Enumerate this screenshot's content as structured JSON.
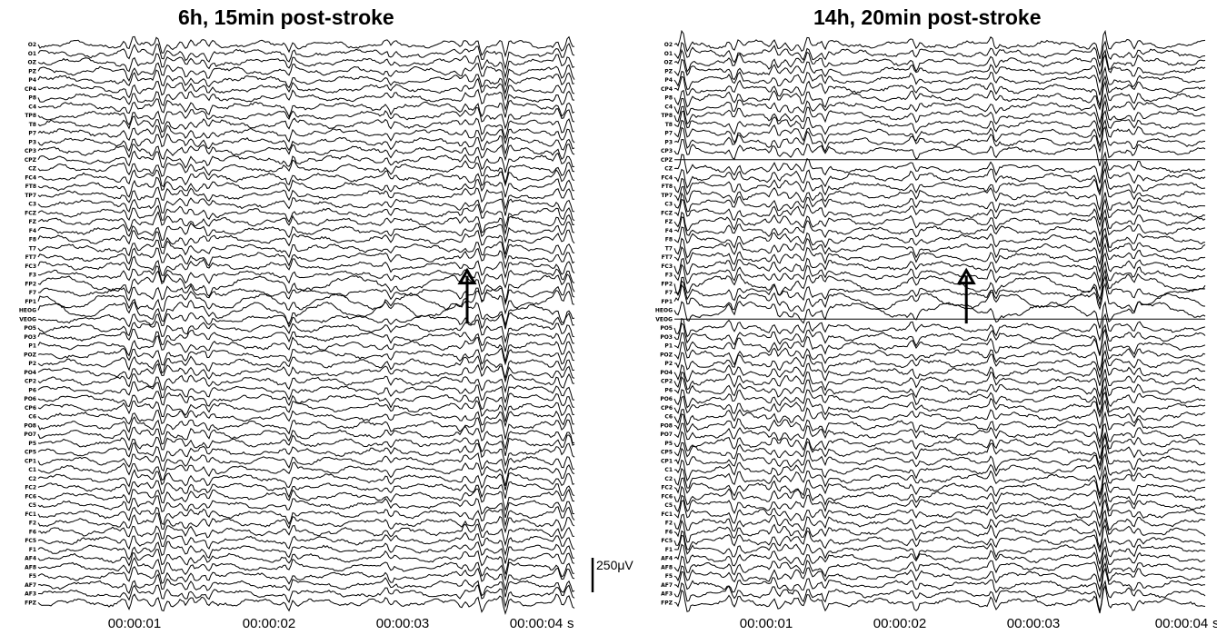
{
  "figure": {
    "scale_bar_label": "250μV"
  },
  "chart_data": [
    {
      "type": "line",
      "title": "6h, 15min post-stroke",
      "x_ticks": [
        "00:00:01",
        "00:00:02",
        "00:00:03",
        "00:00:04"
      ],
      "x_unit": "s",
      "channels": [
        "O2",
        "O1",
        "OZ",
        "PZ",
        "P4",
        "CP4",
        "P8",
        "C4",
        "TP8",
        "T8",
        "P7",
        "P3",
        "CP3",
        "CPZ",
        "CZ",
        "FC4",
        "FT8",
        "TP7",
        "C3",
        "FCZ",
        "FZ",
        "F4",
        "F8",
        "T7",
        "FT7",
        "FC3",
        "F3",
        "FP2",
        "F7",
        "FP1",
        "HEOG",
        "VEOG",
        "PO5",
        "PO3",
        "P1",
        "POZ",
        "P2",
        "PO4",
        "CP2",
        "P6",
        "PO6",
        "CP6",
        "C6",
        "PO8",
        "PO7",
        "P5",
        "CP5",
        "CP1",
        "C1",
        "C2",
        "FC2",
        "FC6",
        "C5",
        "FC1",
        "F2",
        "F6",
        "FC5",
        "F1",
        "AF4",
        "AF8",
        "F5",
        "AF7",
        "AF3",
        "FPZ"
      ],
      "flat_channels": [],
      "annotation": {
        "type": "arrow",
        "direction": "up",
        "time_s": 3.2
      }
    },
    {
      "type": "line",
      "title": "14h, 20min post-stroke",
      "x_ticks": [
        "00:00:01",
        "00:00:02",
        "00:00:03",
        "00:00:04"
      ],
      "x_unit": "s",
      "channels": [
        "O2",
        "O1",
        "OZ",
        "PZ",
        "P4",
        "CP4",
        "P8",
        "C4",
        "TP8",
        "T8",
        "P7",
        "P3",
        "CP3",
        "CPZ",
        "CZ",
        "FC4",
        "FT8",
        "TP7",
        "C3",
        "FCZ",
        "FZ",
        "F4",
        "F8",
        "T7",
        "FT7",
        "FC3",
        "F3",
        "FP2",
        "F7",
        "FP1",
        "HEOG",
        "VEOG",
        "PO5",
        "PO3",
        "P1",
        "POZ",
        "P2",
        "PO4",
        "CP2",
        "P6",
        "PO6",
        "CP6",
        "C6",
        "PO8",
        "PO7",
        "P5",
        "CP5",
        "CP1",
        "C1",
        "C2",
        "FC2",
        "FC6",
        "C5",
        "FC1",
        "F2",
        "F6",
        "FC5",
        "F1",
        "AF4",
        "AF8",
        "F5",
        "AF7",
        "AF3",
        "FPZ"
      ],
      "flat_channels": [
        "CPZ",
        "VEOG"
      ],
      "annotation": {
        "type": "arrow",
        "direction": "up",
        "time_s": 2.2
      }
    }
  ]
}
